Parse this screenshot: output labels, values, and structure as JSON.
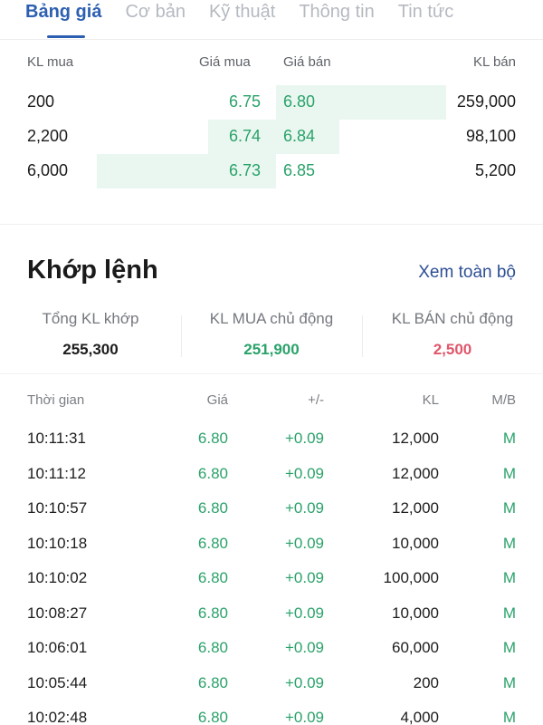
{
  "tabs": [
    "Bảng giá",
    "Cơ bản",
    "Kỹ thuật",
    "Thông tin",
    "Tin tức"
  ],
  "orderbook": {
    "headers": {
      "kl_mua": "KL mua",
      "gia_mua": "Giá mua",
      "gia_ban": "Giá bán",
      "kl_ban": "KL bán"
    },
    "rows": [
      {
        "kl_mua": "200",
        "gia_mua": "6.75",
        "gia_ban": "6.80",
        "kl_ban": "259,000"
      },
      {
        "kl_mua": "2,200",
        "gia_mua": "6.74",
        "gia_ban": "6.84",
        "kl_ban": "98,100"
      },
      {
        "kl_mua": "6,000",
        "gia_mua": "6.73",
        "gia_ban": "6.85",
        "kl_ban": "5,200"
      }
    ]
  },
  "khop_lenh": {
    "title": "Khớp lệnh",
    "link": "Xem toàn bộ",
    "summary": [
      {
        "label": "Tổng KL khớp",
        "value": "255,300",
        "color": "#1c1c1e"
      },
      {
        "label": "KL MUA chủ động",
        "value": "251,900",
        "color": "#2aa26a"
      },
      {
        "label": "KL BÁN chủ động",
        "value": "2,500",
        "color": "#e0566b"
      }
    ],
    "headers": {
      "time": "Thời gian",
      "price": "Giá",
      "change": "+/-",
      "volume": "KL",
      "side": "M/B"
    },
    "rows": [
      {
        "time": "10:11:31",
        "price": "6.80",
        "change": "+0.09",
        "volume": "12,000",
        "side": "M"
      },
      {
        "time": "10:11:12",
        "price": "6.80",
        "change": "+0.09",
        "volume": "12,000",
        "side": "M"
      },
      {
        "time": "10:10:57",
        "price": "6.80",
        "change": "+0.09",
        "volume": "12,000",
        "side": "M"
      },
      {
        "time": "10:10:18",
        "price": "6.80",
        "change": "+0.09",
        "volume": "10,000",
        "side": "M"
      },
      {
        "time": "10:10:02",
        "price": "6.80",
        "change": "+0.09",
        "volume": "100,000",
        "side": "M"
      },
      {
        "time": "10:08:27",
        "price": "6.80",
        "change": "+0.09",
        "volume": "10,000",
        "side": "M"
      },
      {
        "time": "10:06:01",
        "price": "6.80",
        "change": "+0.09",
        "volume": "60,000",
        "side": "M"
      },
      {
        "time": "10:05:44",
        "price": "6.80",
        "change": "+0.09",
        "volume": "200",
        "side": "M"
      },
      {
        "time": "10:02:48",
        "price": "6.80",
        "change": "+0.09",
        "volume": "4,000",
        "side": "M"
      }
    ]
  },
  "colors": {
    "accent": "#2d5fb0",
    "green": "#2aa26a",
    "red": "#e0566b"
  }
}
